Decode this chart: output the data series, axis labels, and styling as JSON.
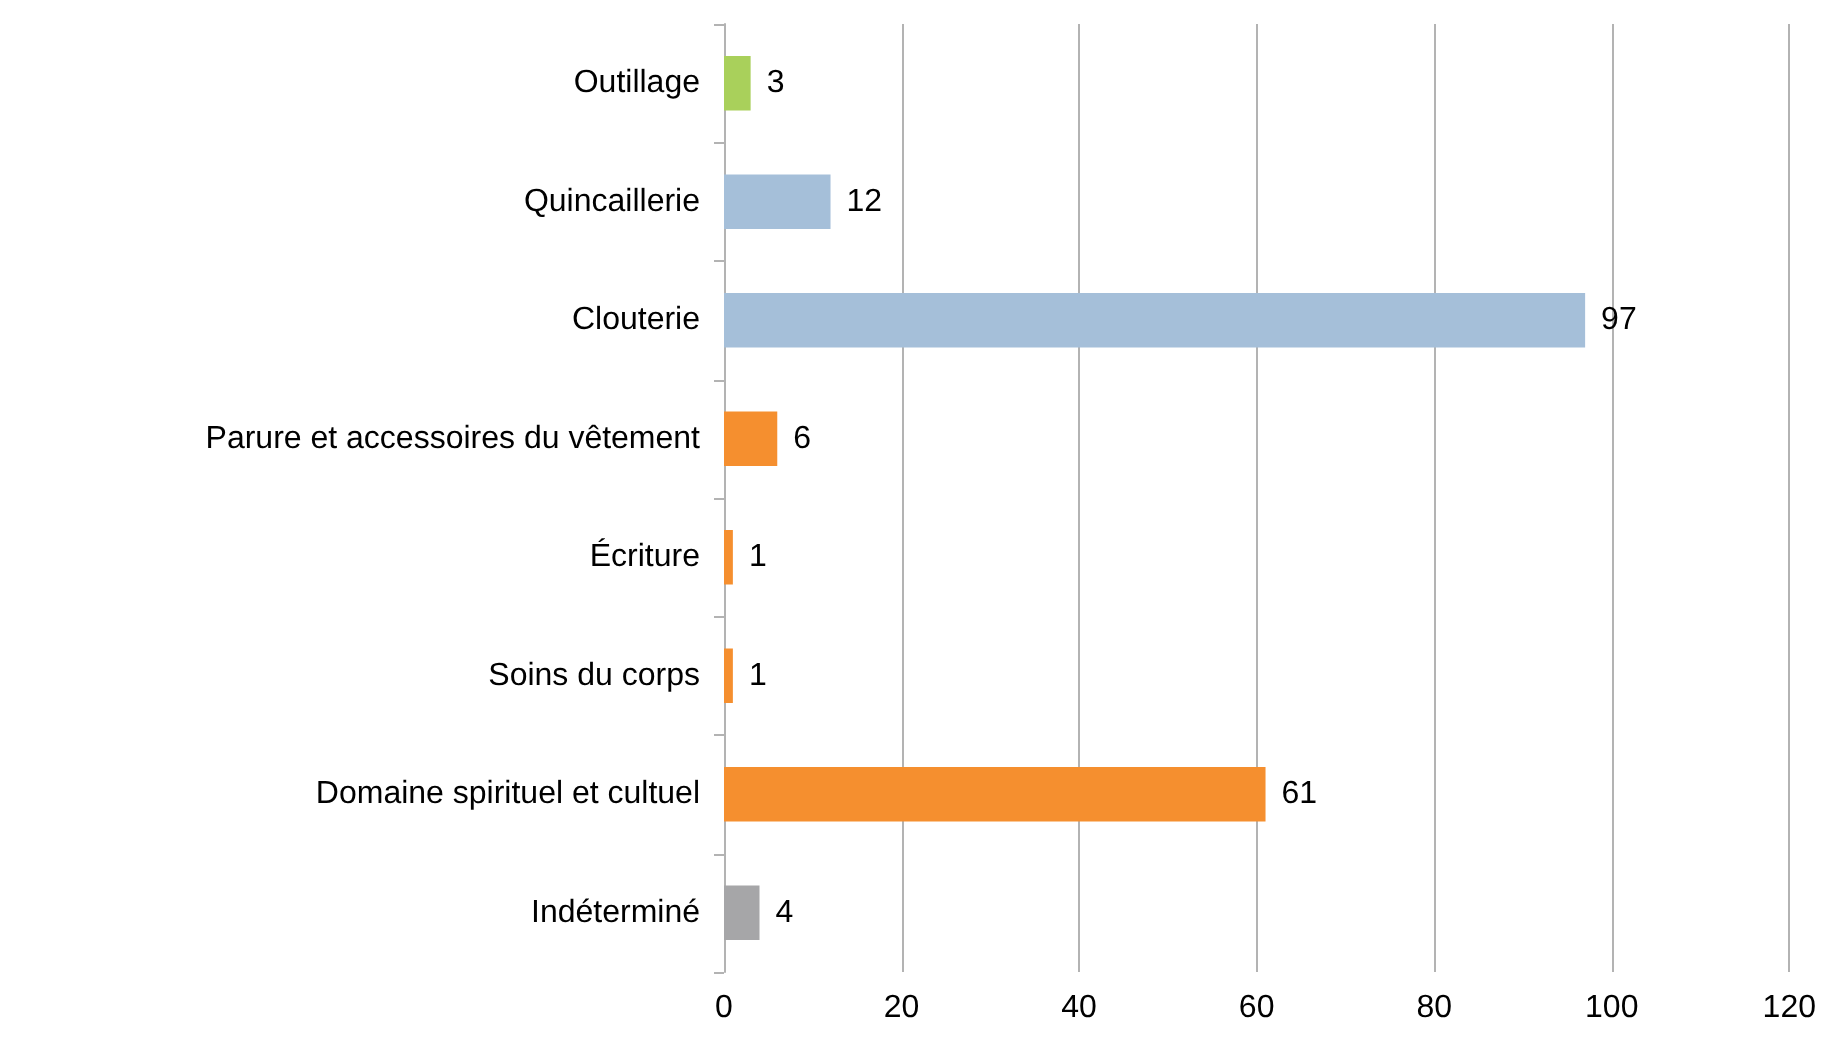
{
  "chart_data": {
    "type": "bar",
    "orientation": "horizontal",
    "categories": [
      "Outillage",
      "Quincaillerie",
      "Clouterie",
      "Parure et accessoires du vêtement",
      "Écriture",
      "Soins du corps",
      "Domaine spirituel et cultuel",
      "Indéterminé"
    ],
    "values": [
      3,
      12,
      97,
      6,
      1,
      1,
      61,
      4
    ],
    "colors": [
      "#a9d05b",
      "#a5bfd9",
      "#a5bfd9",
      "#f58f2f",
      "#f58f2f",
      "#f58f2f",
      "#f58f2f",
      "#a6a6a8"
    ],
    "xlim": [
      0,
      120
    ],
    "xticks": [
      0,
      20,
      40,
      60,
      80,
      100,
      120
    ],
    "grid": "x",
    "data_labels": true
  }
}
